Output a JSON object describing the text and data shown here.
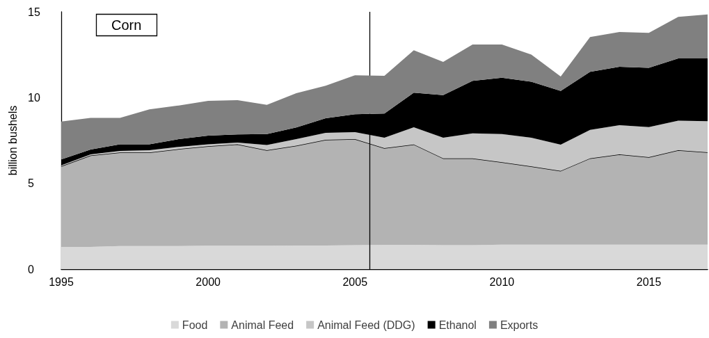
{
  "chart_data": {
    "type": "area",
    "title": "Corn",
    "ylabel": "billion bushels",
    "stacked": true,
    "x": [
      1995,
      1996,
      1997,
      1998,
      1999,
      2000,
      2001,
      2002,
      2003,
      2004,
      2005,
      2006,
      2007,
      2008,
      2009,
      2010,
      2011,
      2012,
      2013,
      2014,
      2015,
      2016,
      2017
    ],
    "series": [
      {
        "name": "Food",
        "color": "#d9d9d9",
        "values": [
          1.3,
          1.3,
          1.35,
          1.35,
          1.35,
          1.37,
          1.37,
          1.37,
          1.38,
          1.38,
          1.4,
          1.42,
          1.42,
          1.4,
          1.4,
          1.43,
          1.43,
          1.43,
          1.43,
          1.43,
          1.43,
          1.43,
          1.43
        ]
      },
      {
        "name": "Animal Feed",
        "color": "#b3b3b3",
        "line_style": "solid",
        "values": [
          4.7,
          5.33,
          5.45,
          5.45,
          5.65,
          5.8,
          5.91,
          5.56,
          5.82,
          6.16,
          6.18,
          5.63,
          5.85,
          5.06,
          5.06,
          4.8,
          4.56,
          4.3,
          5.03,
          5.26,
          5.1,
          5.5,
          5.38
        ]
      },
      {
        "name": "Animal Feed (DDG)",
        "color": "#c6c6c6",
        "values": [
          0.05,
          0.06,
          0.09,
          0.13,
          0.13,
          0.11,
          0.1,
          0.31,
          0.38,
          0.41,
          0.41,
          0.61,
          1.0,
          1.2,
          1.46,
          1.65,
          1.67,
          1.53,
          1.66,
          1.7,
          1.75,
          1.73,
          1.81
        ]
      },
      {
        "name": "Ethanol",
        "color": "#000000",
        "values": [
          0.35,
          0.28,
          0.39,
          0.35,
          0.45,
          0.5,
          0.47,
          0.63,
          0.68,
          0.85,
          1.04,
          1.41,
          2.02,
          2.49,
          3.06,
          3.28,
          3.27,
          3.13,
          3.38,
          3.41,
          3.46,
          3.62,
          3.66
        ]
      },
      {
        "name": "Exports",
        "color": "#808080",
        "values": [
          2.2,
          1.85,
          1.54,
          2.03,
          1.96,
          2.03,
          2.0,
          1.71,
          2.0,
          1.89,
          2.27,
          2.2,
          2.47,
          1.93,
          2.11,
          1.93,
          1.58,
          0.84,
          2.03,
          2.02,
          2.03,
          2.43,
          2.57
        ]
      }
    ],
    "xlim": [
      1995,
      2017
    ],
    "xticks": [
      1995,
      2000,
      2005,
      2010,
      2015
    ],
    "ylim": [
      0,
      15
    ],
    "yticks": [
      0,
      5,
      10,
      15
    ],
    "ref_lines": [
      {
        "axis": "x",
        "value": 2005.5,
        "color": "#000000",
        "line_style": "solid"
      }
    ],
    "grid": false,
    "legend": "bottom"
  }
}
